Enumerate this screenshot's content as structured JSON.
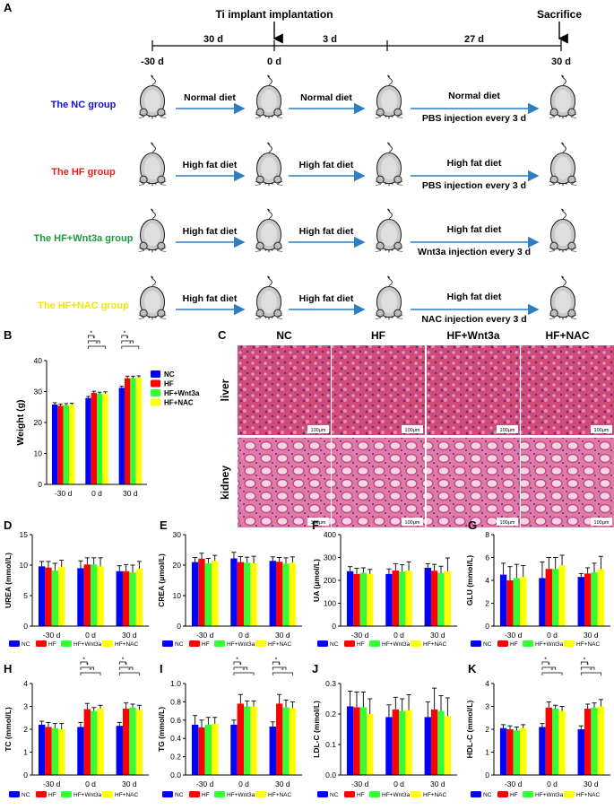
{
  "panel_letters": {
    "A": "A",
    "B": "B",
    "C": "C",
    "D": "D",
    "E": "E",
    "F": "F",
    "G": "G",
    "H": "H",
    "I": "I",
    "J": "J",
    "K": "K"
  },
  "timeline": {
    "event_implant": "Ti implant implantation",
    "event_sacrifice": "Sacrifice",
    "seg1": "30 d",
    "seg2": "3 d",
    "seg3": "27 d",
    "t1": "-30 d",
    "t2": "0 d",
    "t4": "30 d"
  },
  "groups": [
    {
      "name": "The NC group",
      "color": "#1010e0",
      "diet1": "Normal diet",
      "diet2": "Normal diet",
      "diet3": "Normal diet",
      "injection": "PBS injection every 3 d"
    },
    {
      "name": "The HF group",
      "color": "#ee1c1c",
      "diet1": "High fat diet",
      "diet2": "High fat diet",
      "diet3": "High fat diet",
      "injection": "PBS injection every 3 d"
    },
    {
      "name": "The HF+Wnt3a group",
      "color": "#1a9a3a",
      "diet1": "High fat diet",
      "diet2": "High fat diet",
      "diet3": "High fat diet",
      "injection": "Wnt3a injection every 3 d"
    },
    {
      "name": "The HF+NAC group",
      "color": "#f2e600",
      "diet1": "High fat diet",
      "diet2": "High fat diet",
      "diet3": "High fat diet",
      "injection": "NAC injection every 3 d"
    }
  ],
  "series_colors": {
    "NC": "#0000ff",
    "HF": "#ff0000",
    "HF+Wnt3a": "#33ff33",
    "HF+NAC": "#ffff00"
  },
  "legend": [
    "NC",
    "HF",
    "HF+Wnt3a",
    "HF+NAC"
  ],
  "histology": {
    "columns": [
      "NC",
      "HF",
      "HF+Wnt3a",
      "HF+NAC"
    ],
    "rows": [
      "liver",
      "kidney"
    ],
    "scale_bar": "100μm"
  },
  "star": "*",
  "chart_data": [
    {
      "id": "B",
      "type": "bar",
      "ylabel": "Weight (g)",
      "ylim": [
        0,
        40
      ],
      "yticks": [
        "0",
        "10",
        "20",
        "30",
        "40"
      ],
      "categories": [
        "-30 d",
        "0 d",
        "30 d"
      ],
      "series": [
        {
          "name": "NC",
          "values": [
            25.8,
            27.9,
            31.2
          ],
          "err": [
            0.6,
            0.5,
            0.5
          ]
        },
        {
          "name": "HF",
          "values": [
            25.4,
            29.6,
            34.3
          ],
          "err": [
            0.6,
            0.5,
            0.7
          ]
        },
        {
          "name": "HF+Wnt3a",
          "values": [
            25.6,
            29.3,
            34.4
          ],
          "err": [
            0.5,
            0.5,
            0.6
          ]
        },
        {
          "name": "HF+NAC",
          "values": [
            25.7,
            29.4,
            34.5
          ],
          "err": [
            0.5,
            0.5,
            0.6
          ]
        }
      ],
      "sig_groups": [
        1,
        2
      ]
    },
    {
      "id": "D",
      "type": "bar",
      "ylabel": "UREA (mmol/L)",
      "ylim": [
        0,
        15
      ],
      "yticks": [
        "0",
        "5",
        "10",
        "15"
      ],
      "categories": [
        "-30 d",
        "0 d",
        "30 d"
      ],
      "series": [
        {
          "name": "NC",
          "values": [
            9.8,
            9.5,
            9.0
          ],
          "err": [
            0.8,
            1.2,
            0.9
          ]
        },
        {
          "name": "HF",
          "values": [
            9.6,
            10.1,
            9.0
          ],
          "err": [
            1.0,
            1.1,
            1.1
          ]
        },
        {
          "name": "HF+Wnt3a",
          "values": [
            9.1,
            10.1,
            8.8
          ],
          "err": [
            1.2,
            1.1,
            1.2
          ]
        },
        {
          "name": "HF+NAC",
          "values": [
            9.7,
            9.8,
            9.4
          ],
          "err": [
            1.1,
            1.4,
            1.2
          ]
        }
      ],
      "sig_groups": []
    },
    {
      "id": "E",
      "type": "bar",
      "ylabel": "CREA (μmol/L)",
      "ylim": [
        0,
        30
      ],
      "yticks": [
        "0",
        "10",
        "20",
        "30"
      ],
      "categories": [
        "-30 d",
        "0 d",
        "30 d"
      ],
      "series": [
        {
          "name": "NC",
          "values": [
            21.0,
            22.2,
            21.4
          ],
          "err": [
            1.5,
            2.0,
            1.3
          ]
        },
        {
          "name": "HF",
          "values": [
            22.1,
            21.0,
            21.1
          ],
          "err": [
            1.8,
            1.8,
            1.4
          ]
        },
        {
          "name": "HF+Wnt3a",
          "values": [
            20.6,
            20.8,
            20.5
          ],
          "err": [
            1.6,
            1.8,
            1.9
          ]
        },
        {
          "name": "HF+NAC",
          "values": [
            21.4,
            20.6,
            20.8
          ],
          "err": [
            1.8,
            2.3,
            1.9
          ]
        }
      ],
      "sig_groups": []
    },
    {
      "id": "F",
      "type": "bar",
      "ylabel": "UA (μmol/L)",
      "ylim": [
        0,
        400
      ],
      "yticks": [
        "0",
        "100",
        "200",
        "300",
        "400"
      ],
      "categories": [
        "-30 d",
        "0 d",
        "30 d"
      ],
      "series": [
        {
          "name": "NC",
          "values": [
            240,
            228,
            255
          ],
          "err": [
            20,
            22,
            18
          ]
        },
        {
          "name": "HF",
          "values": [
            228,
            243,
            242
          ],
          "err": [
            25,
            30,
            28
          ]
        },
        {
          "name": "HF+Wnt3a",
          "values": [
            233,
            238,
            232
          ],
          "err": [
            22,
            30,
            30
          ]
        },
        {
          "name": "HF+NAC",
          "values": [
            228,
            243,
            240
          ],
          "err": [
            20,
            38,
            58
          ]
        }
      ],
      "sig_groups": []
    },
    {
      "id": "G",
      "type": "bar",
      "ylabel": "GLU (mmol/L)",
      "ylim": [
        0,
        8
      ],
      "yticks": [
        "0",
        "2",
        "4",
        "6",
        "8"
      ],
      "categories": [
        "-30 d",
        "0 d",
        "30 d"
      ],
      "series": [
        {
          "name": "NC",
          "values": [
            4.5,
            4.2,
            4.3
          ],
          "err": [
            1.0,
            1.4,
            0.3
          ]
        },
        {
          "name": "HF",
          "values": [
            4.0,
            5.0,
            4.6
          ],
          "err": [
            1.2,
            1.0,
            0.5
          ]
        },
        {
          "name": "HF+Wnt3a",
          "values": [
            4.2,
            5.0,
            4.7
          ],
          "err": [
            1.2,
            1.0,
            0.8
          ]
        },
        {
          "name": "HF+NAC",
          "values": [
            4.3,
            5.3,
            5.0
          ],
          "err": [
            1.0,
            0.9,
            1.1
          ]
        }
      ],
      "sig_groups": []
    },
    {
      "id": "H",
      "type": "bar",
      "ylabel": "TC (mmol/L)",
      "ylim": [
        0,
        4
      ],
      "yticks": [
        "0",
        "1",
        "2",
        "3",
        "4"
      ],
      "categories": [
        "-30 d",
        "0 d",
        "30 d"
      ],
      "series": [
        {
          "name": "NC",
          "values": [
            2.2,
            2.1,
            2.15
          ],
          "err": [
            0.15,
            0.2,
            0.15
          ]
        },
        {
          "name": "HF",
          "values": [
            2.1,
            2.88,
            2.9
          ],
          "err": [
            0.2,
            0.25,
            0.25
          ]
        },
        {
          "name": "HF+Wnt3a",
          "values": [
            2.05,
            2.8,
            2.95
          ],
          "err": [
            0.2,
            0.15,
            0.15
          ]
        },
        {
          "name": "HF+NAC",
          "values": [
            2.0,
            2.9,
            2.85
          ],
          "err": [
            0.25,
            0.15,
            0.2
          ]
        }
      ],
      "sig_groups": [
        1,
        2
      ]
    },
    {
      "id": "I",
      "type": "bar",
      "ylabel": "TG (mmol/L)",
      "ylim": [
        0,
        1.0
      ],
      "yticks": [
        "0.0",
        "0.2",
        "0.4",
        "0.6",
        "0.8",
        "1.0"
      ],
      "categories": [
        "-30 d",
        "0 d",
        "30 d"
      ],
      "series": [
        {
          "name": "NC",
          "values": [
            0.55,
            0.55,
            0.53
          ],
          "err": [
            0.1,
            0.05,
            0.05
          ]
        },
        {
          "name": "HF",
          "values": [
            0.52,
            0.78,
            0.78
          ],
          "err": [
            0.08,
            0.1,
            0.1
          ]
        },
        {
          "name": "HF+Wnt3a",
          "values": [
            0.55,
            0.75,
            0.74
          ],
          "err": [
            0.08,
            0.06,
            0.08
          ]
        },
        {
          "name": "HF+NAC",
          "values": [
            0.56,
            0.75,
            0.73
          ],
          "err": [
            0.07,
            0.06,
            0.07
          ]
        }
      ],
      "sig_groups": [
        1,
        2
      ]
    },
    {
      "id": "J",
      "type": "bar",
      "ylabel": "LDL-C (mmol/L)",
      "ylim": [
        0,
        0.3
      ],
      "yticks": [
        "0.0",
        "0.1",
        "0.2",
        "0.3"
      ],
      "categories": [
        "-30 d",
        "0 d",
        "30 d"
      ],
      "series": [
        {
          "name": "NC",
          "values": [
            0.225,
            0.19,
            0.19
          ],
          "err": [
            0.05,
            0.04,
            0.05
          ]
        },
        {
          "name": "HF",
          "values": [
            0.222,
            0.215,
            0.215
          ],
          "err": [
            0.05,
            0.04,
            0.07
          ]
        },
        {
          "name": "HF+Wnt3a",
          "values": [
            0.222,
            0.21,
            0.21
          ],
          "err": [
            0.05,
            0.04,
            0.05
          ]
        },
        {
          "name": "HF+NAC",
          "values": [
            0.2,
            0.213,
            0.193
          ],
          "err": [
            0.05,
            0.05,
            0.06
          ]
        }
      ],
      "sig_groups": []
    },
    {
      "id": "K",
      "type": "bar",
      "ylabel": "HDL-C (mmol/L)",
      "ylim": [
        0,
        4
      ],
      "yticks": [
        "0",
        "1",
        "2",
        "3",
        "4"
      ],
      "categories": [
        "-30 d",
        "0 d",
        "30 d"
      ],
      "series": [
        {
          "name": "NC",
          "values": [
            2.05,
            2.1,
            2.0
          ],
          "err": [
            0.15,
            0.15,
            0.15
          ]
        },
        {
          "name": "HF",
          "values": [
            2.0,
            2.95,
            2.9
          ],
          "err": [
            0.15,
            0.25,
            0.2
          ]
        },
        {
          "name": "HF+Wnt3a",
          "values": [
            1.95,
            2.9,
            2.95
          ],
          "err": [
            0.15,
            0.15,
            0.2
          ]
        },
        {
          "name": "HF+NAC",
          "values": [
            2.05,
            2.8,
            3.0
          ],
          "err": [
            0.15,
            0.2,
            0.3
          ]
        }
      ],
      "sig_groups": [
        1,
        2
      ]
    }
  ]
}
